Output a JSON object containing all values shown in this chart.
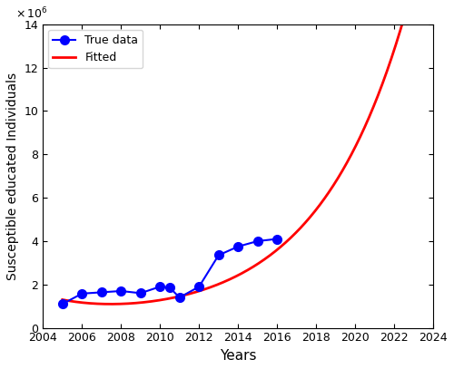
{
  "true_data_years": [
    2005,
    2006,
    2007,
    2008,
    2009,
    2010,
    2010.5,
    2011,
    2012,
    2013,
    2014,
    2015,
    2016
  ],
  "true_data_values": [
    1100000,
    1580000,
    1640000,
    1700000,
    1600000,
    1900000,
    1850000,
    1400000,
    1900000,
    3350000,
    3750000,
    4000000,
    4100000
  ],
  "ylabel": "Susceptible educated Individuals",
  "xlabel": "Years",
  "xlim": [
    2004,
    2024
  ],
  "ylim": [
    0,
    14000000
  ],
  "ytick_vals": [
    0,
    2,
    4,
    6,
    8,
    10,
    12,
    14
  ],
  "xticks": [
    2004,
    2006,
    2008,
    2010,
    2012,
    2014,
    2016,
    2018,
    2020,
    2022,
    2024
  ],
  "legend_true": "True data",
  "legend_fitted": "Fitted",
  "true_color": "#0000ff",
  "fitted_color": "#ff0000",
  "bg_color": "#ffffff",
  "linewidth_fitted": 2.0,
  "linewidth_true": 1.5,
  "marker": "o",
  "markersize": 7,
  "fit_start": 2005,
  "fit_end": 2024
}
